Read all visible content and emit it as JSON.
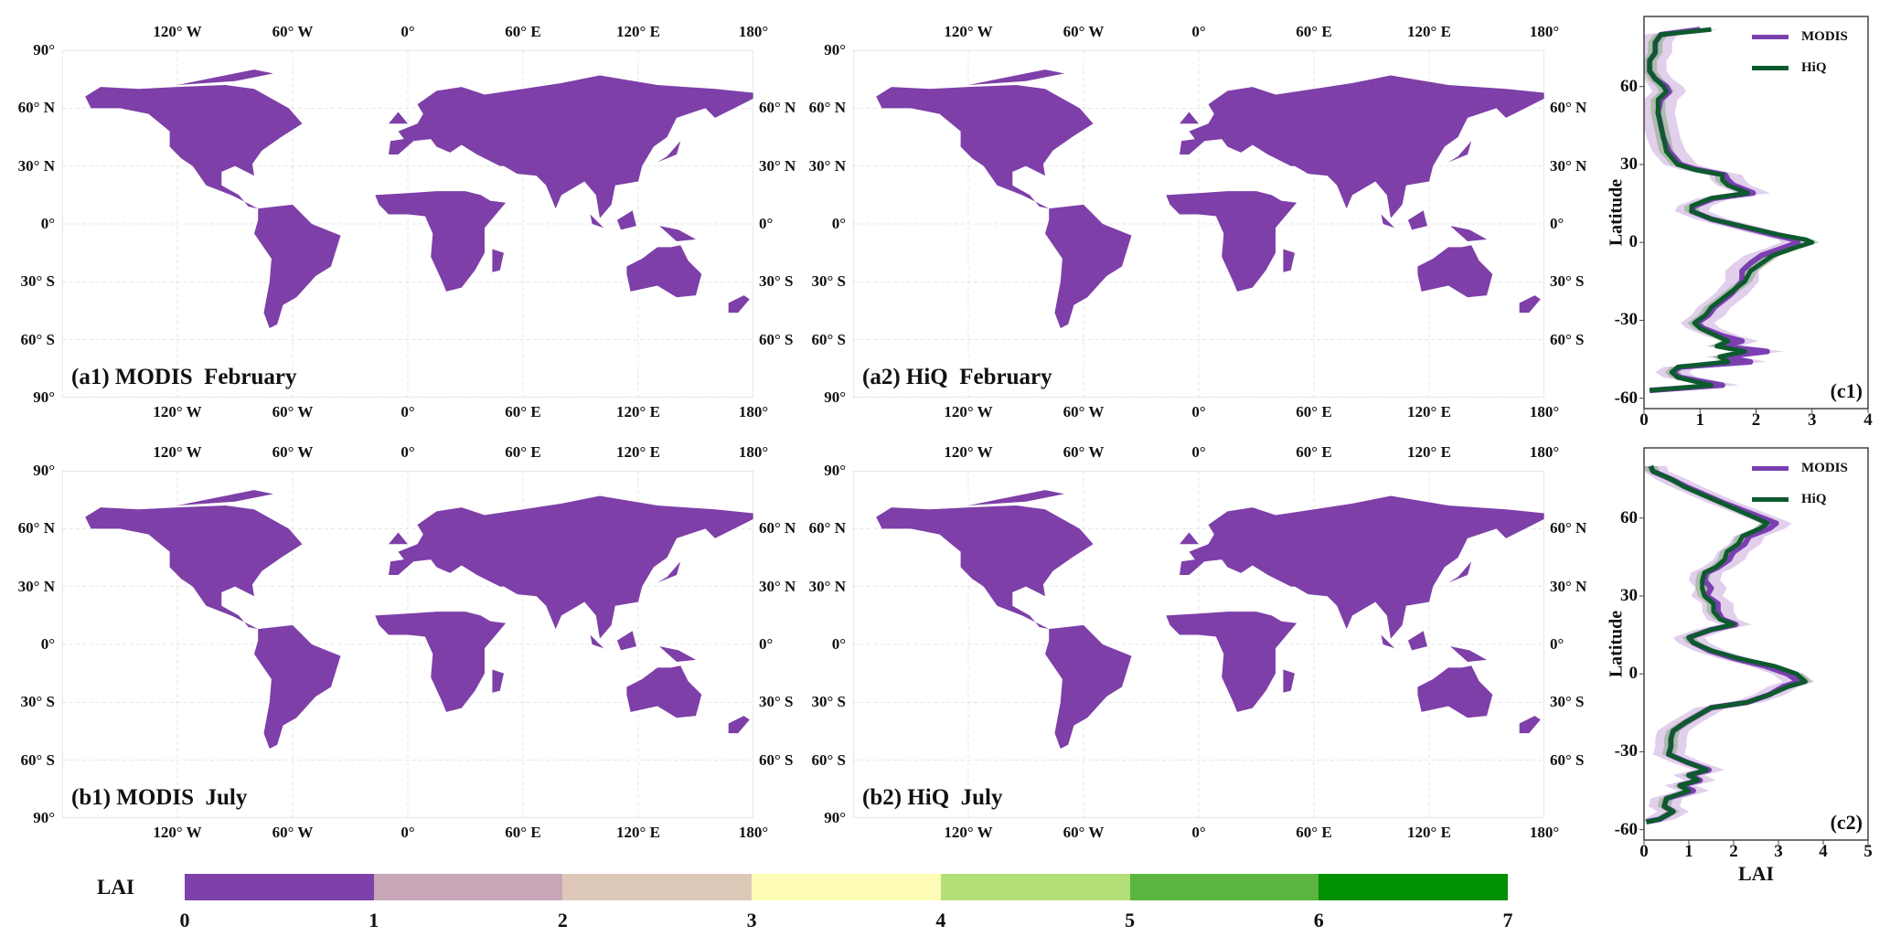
{
  "map_panels": [
    {
      "title": "(a1) MODIS  February",
      "month": "feb"
    },
    {
      "title": "(a2) HiQ  February",
      "month": "feb"
    },
    {
      "title": "(b1) MODIS  July",
      "month": "jul"
    },
    {
      "title": "(b2) HiQ  July",
      "month": "jul"
    }
  ],
  "map_axes": {
    "lon_labels": [
      "120° W",
      "60° W",
      "0°",
      "60° E",
      "120° E",
      "180°"
    ],
    "lon_values": [
      -120,
      -60,
      0,
      60,
      120,
      180
    ],
    "lat_left_labels": [
      "90°",
      "60° N",
      "30° N",
      "0°",
      "30° S",
      "60° S",
      "90°"
    ],
    "lat_left_values": [
      90,
      60,
      30,
      0,
      -30,
      -60,
      -90
    ],
    "lat_right_labels": [
      "60° N",
      "30° N",
      "0°",
      "30° S",
      "60° S"
    ],
    "lat_right_values": [
      60,
      30,
      0,
      -30,
      -60
    ]
  },
  "colors": {
    "modis": "#7b3fb0",
    "hiq": "#0d5a2e",
    "modis_band": "#c9a8dc",
    "hiq_band": "#7fae74",
    "land_low": "#7e3fa8"
  },
  "colorbar": {
    "label": "LAI",
    "ticks": [
      "0",
      "1",
      "2",
      "3",
      "4",
      "5",
      "6",
      "7"
    ],
    "colors": [
      "#7e40a9",
      "#c7a6b8",
      "#ddc8b8",
      "#fdfdb8",
      "#b3df78",
      "#5cb540",
      "#009000"
    ]
  },
  "chart_data": [
    {
      "type": "line",
      "panel_label": "(c1)",
      "xlabel": "",
      "ylabel": "Latitude",
      "xlim": [
        0,
        4
      ],
      "ylim": [
        -64,
        87
      ],
      "xticks": [
        0,
        1,
        2,
        3,
        4
      ],
      "yticks": [
        -60,
        -30,
        0,
        30,
        60
      ],
      "legend": [
        "MODIS",
        "HiQ"
      ],
      "legend_position": "top-right",
      "series": [
        {
          "name": "MODIS",
          "band": 0.3,
          "lat": [
            82,
            80,
            77,
            73,
            70,
            66,
            63,
            60,
            58,
            55,
            50,
            45,
            40,
            35,
            30,
            28,
            26,
            24,
            22,
            19,
            17,
            14,
            12,
            9,
            6,
            3,
            1,
            0,
            -2,
            -5,
            -8,
            -11,
            -15,
            -20,
            -25,
            -28,
            -31,
            -33,
            -36,
            -38,
            -40,
            -42,
            -44,
            -46,
            -48,
            -50,
            -52,
            -55,
            -57
          ],
          "lai": [
            1.0,
            0.3,
            0.2,
            0.2,
            0.1,
            0.1,
            0.2,
            0.4,
            0.45,
            0.3,
            0.25,
            0.3,
            0.35,
            0.45,
            0.65,
            0.95,
            1.45,
            1.5,
            1.6,
            1.95,
            1.25,
            0.9,
            0.85,
            1.2,
            1.75,
            2.3,
            2.7,
            2.75,
            2.5,
            2.1,
            1.9,
            1.75,
            1.75,
            1.55,
            1.25,
            1.15,
            0.95,
            1.05,
            1.4,
            1.75,
            1.4,
            2.2,
            1.4,
            1.9,
            0.65,
            0.5,
            0.65,
            1.4,
            0.1
          ]
        },
        {
          "name": "HiQ",
          "band": 0.13,
          "lat": [
            82,
            80,
            77,
            73,
            70,
            66,
            63,
            60,
            58,
            55,
            50,
            45,
            40,
            35,
            30,
            28,
            26,
            24,
            22,
            19,
            17,
            14,
            12,
            9,
            6,
            3,
            1,
            0,
            -2,
            -5,
            -8,
            -11,
            -15,
            -20,
            -25,
            -28,
            -31,
            -33,
            -36,
            -38,
            -40,
            -42,
            -44,
            -46,
            -48,
            -50,
            -52,
            -55,
            -57
          ],
          "lai": [
            1.2,
            0.3,
            0.2,
            0.2,
            0.1,
            0.1,
            0.2,
            0.35,
            0.4,
            0.25,
            0.25,
            0.3,
            0.35,
            0.4,
            0.6,
            0.9,
            1.4,
            1.4,
            1.5,
            1.85,
            1.2,
            0.85,
            0.85,
            1.2,
            1.8,
            2.4,
            2.9,
            3.0,
            2.7,
            2.3,
            2.1,
            1.9,
            1.8,
            1.5,
            1.2,
            1.1,
            0.9,
            1.0,
            1.3,
            1.5,
            1.3,
            1.8,
            1.35,
            1.5,
            0.6,
            0.5,
            0.6,
            1.2,
            0.1
          ]
        }
      ]
    },
    {
      "type": "line",
      "panel_label": "(c2)",
      "xlabel": "LAI",
      "ylabel": "Latitude",
      "xlim": [
        0,
        5
      ],
      "ylim": [
        -64,
        87
      ],
      "xticks": [
        0,
        1,
        2,
        3,
        4,
        5
      ],
      "yticks": [
        -60,
        -30,
        0,
        30,
        60
      ],
      "legend": [
        "MODIS",
        "HiQ"
      ],
      "legend_position": "top-right",
      "series": [
        {
          "name": "MODIS",
          "band": 0.35,
          "lat": [
            80,
            78,
            75,
            72,
            69,
            66,
            63,
            60,
            58,
            56,
            53,
            50,
            47,
            44,
            41,
            39,
            36,
            33,
            30,
            27,
            24,
            21,
            19,
            17,
            14,
            12,
            9,
            6,
            3,
            0,
            -3,
            -5,
            -8,
            -11,
            -13,
            -16,
            -19,
            -22,
            -25,
            -28,
            -31,
            -34,
            -37,
            -39,
            -41,
            -43,
            -45,
            -48,
            -51,
            -53,
            -56,
            -57
          ],
          "lai": [
            0.15,
            0.2,
            0.6,
            0.95,
            1.35,
            1.75,
            2.2,
            2.65,
            2.95,
            2.8,
            2.35,
            2.25,
            2.0,
            1.9,
            1.65,
            1.4,
            1.35,
            1.5,
            1.4,
            1.65,
            1.65,
            1.75,
            2.05,
            1.5,
            1.0,
            1.1,
            1.45,
            2.0,
            2.7,
            3.2,
            3.45,
            3.1,
            2.8,
            2.3,
            1.5,
            1.2,
            0.9,
            0.65,
            0.6,
            0.6,
            0.55,
            0.95,
            1.45,
            1.0,
            1.25,
            0.8,
            1.1,
            0.5,
            0.45,
            0.65,
            0.35,
            0.05
          ]
        },
        {
          "name": "HiQ",
          "band": 0.15,
          "lat": [
            80,
            78,
            75,
            72,
            69,
            66,
            63,
            60,
            58,
            56,
            53,
            50,
            47,
            44,
            41,
            39,
            36,
            33,
            30,
            27,
            24,
            21,
            19,
            17,
            14,
            12,
            9,
            6,
            3,
            0,
            -3,
            -5,
            -8,
            -11,
            -13,
            -16,
            -19,
            -22,
            -25,
            -28,
            -31,
            -34,
            -37,
            -39,
            -41,
            -43,
            -45,
            -48,
            -51,
            -53,
            -56,
            -57
          ],
          "lai": [
            0.15,
            0.2,
            0.6,
            0.9,
            1.3,
            1.7,
            2.1,
            2.5,
            2.75,
            2.6,
            2.2,
            2.1,
            1.85,
            1.8,
            1.6,
            1.35,
            1.3,
            1.3,
            1.35,
            1.55,
            1.55,
            1.7,
            2.0,
            1.5,
            1.0,
            1.1,
            1.5,
            2.1,
            2.9,
            3.4,
            3.6,
            3.2,
            2.8,
            2.3,
            1.5,
            1.2,
            0.9,
            0.65,
            0.6,
            0.6,
            0.55,
            0.95,
            1.4,
            1.0,
            1.2,
            0.8,
            1.0,
            0.5,
            0.45,
            0.65,
            0.35,
            0.05
          ]
        }
      ]
    }
  ]
}
